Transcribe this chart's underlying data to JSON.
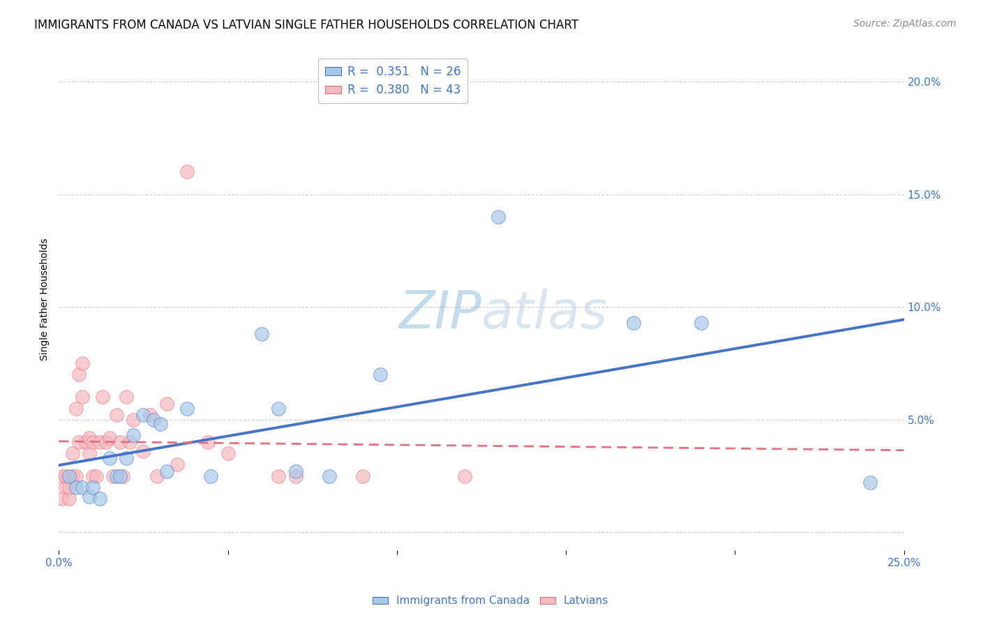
{
  "title": "IMMIGRANTS FROM CANADA VS LATVIAN SINGLE FATHER HOUSEHOLDS CORRELATION CHART",
  "source": "Source: ZipAtlas.com",
  "ylabel": "Single Father Households",
  "yticks": [
    "",
    "5.0%",
    "10.0%",
    "15.0%",
    "20.0%"
  ],
  "ytick_vals": [
    0.0,
    0.05,
    0.1,
    0.15,
    0.2
  ],
  "xlim": [
    0.0,
    0.25
  ],
  "ylim": [
    -0.008,
    0.215
  ],
  "legend_r1": "R =  0.351   N = 26",
  "legend_r2": "R =  0.380   N = 43",
  "legend_label1": "Immigrants from Canada",
  "legend_label2": "Latvians",
  "color_blue": "#A8C8E8",
  "color_pink": "#F4B8C0",
  "line_blue": "#4472C4",
  "line_pink": "#E07080",
  "background": "#FFFFFF",
  "grid_color": "#C8C8C8",
  "blue_scatter_x": [
    0.003,
    0.005,
    0.007,
    0.009,
    0.01,
    0.012,
    0.015,
    0.017,
    0.018,
    0.02,
    0.022,
    0.025,
    0.028,
    0.03,
    0.032,
    0.038,
    0.045,
    0.06,
    0.065,
    0.07,
    0.08,
    0.095,
    0.13,
    0.17,
    0.19,
    0.24
  ],
  "blue_scatter_y": [
    0.025,
    0.02,
    0.02,
    0.016,
    0.02,
    0.015,
    0.033,
    0.025,
    0.025,
    0.033,
    0.043,
    0.052,
    0.05,
    0.048,
    0.027,
    0.055,
    0.025,
    0.088,
    0.055,
    0.027,
    0.025,
    0.07,
    0.14,
    0.093,
    0.093,
    0.022
  ],
  "pink_scatter_x": [
    0.001,
    0.001,
    0.002,
    0.002,
    0.003,
    0.003,
    0.004,
    0.004,
    0.005,
    0.005,
    0.006,
    0.006,
    0.007,
    0.007,
    0.008,
    0.009,
    0.009,
    0.01,
    0.01,
    0.011,
    0.012,
    0.013,
    0.014,
    0.015,
    0.016,
    0.017,
    0.018,
    0.019,
    0.02,
    0.021,
    0.022,
    0.025,
    0.027,
    0.029,
    0.032,
    0.035,
    0.038,
    0.044,
    0.05,
    0.065,
    0.07,
    0.09,
    0.12
  ],
  "pink_scatter_y": [
    0.015,
    0.025,
    0.02,
    0.025,
    0.015,
    0.02,
    0.025,
    0.035,
    0.025,
    0.055,
    0.04,
    0.07,
    0.06,
    0.075,
    0.04,
    0.035,
    0.042,
    0.025,
    0.04,
    0.025,
    0.04,
    0.06,
    0.04,
    0.042,
    0.025,
    0.052,
    0.04,
    0.025,
    0.06,
    0.04,
    0.05,
    0.036,
    0.052,
    0.025,
    0.057,
    0.03,
    0.16,
    0.04,
    0.035,
    0.025,
    0.025,
    0.025,
    0.025
  ],
  "title_fontsize": 12,
  "source_fontsize": 10,
  "axis_fontsize": 10,
  "tick_fontsize": 11,
  "watermark_fontsize": 54,
  "watermark_color": "#C8D8E8"
}
